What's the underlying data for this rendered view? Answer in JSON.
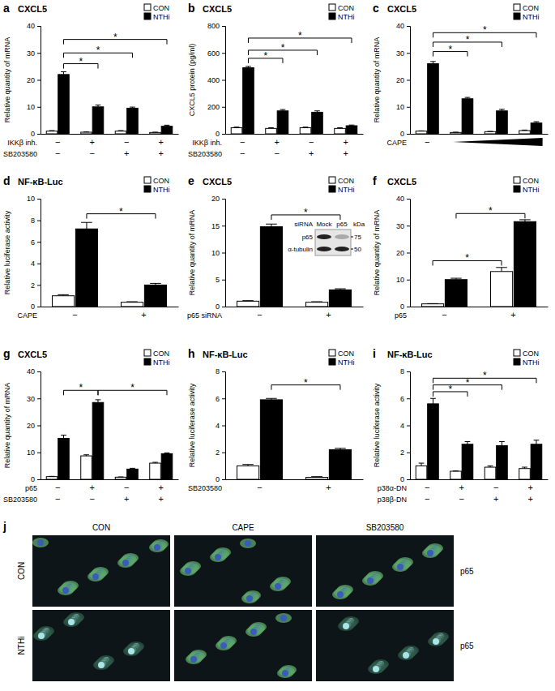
{
  "chart_data": [
    {
      "panel": "a",
      "type": "bar",
      "title": "CXCL5",
      "y_label": "Relative quantity of mRNA",
      "categories": [
        null,
        null,
        null,
        null
      ],
      "series": [
        {
          "name": "CON",
          "color": "#ffffff",
          "values": [
            1.0,
            0.6,
            1.0,
            0.5
          ],
          "errors": [
            0.2,
            0.1,
            0.2,
            0.1
          ]
        },
        {
          "name": "NTHi",
          "color": "#000000",
          "values": [
            22,
            10,
            9.5,
            2.8
          ],
          "errors": [
            1.0,
            0.7,
            0.4,
            0.4
          ]
        }
      ],
      "ylim": [
        0,
        40
      ],
      "yticks": [
        0,
        10,
        20,
        30,
        40
      ],
      "legend": "top-right",
      "rows": [
        {
          "label": "IKKβ inh.",
          "values": [
            "−",
            "+",
            "−",
            "+"
          ]
        },
        {
          "label": "SB203580",
          "values": [
            "−",
            "−",
            "+",
            "+"
          ]
        }
      ],
      "brackets": [
        {
          "from": [
            0,
            1
          ],
          "to": [
            1,
            1
          ],
          "y": 26,
          "label": "*"
        },
        {
          "from": [
            0,
            1
          ],
          "to": [
            2,
            1
          ],
          "y": 30,
          "label": "*"
        },
        {
          "from": [
            0,
            1
          ],
          "to": [
            3,
            1
          ],
          "y": 35,
          "label": "*"
        }
      ]
    },
    {
      "panel": "b",
      "type": "bar",
      "title": "CXCL5",
      "y_label": "CXCL5 protein (pg/ml)",
      "categories": [
        null,
        null,
        null,
        null
      ],
      "series": [
        {
          "name": "CON",
          "color": "#ffffff",
          "values": [
            45,
            40,
            45,
            40
          ],
          "errors": [
            5,
            5,
            5,
            5
          ]
        },
        {
          "name": "NTHi",
          "color": "#000000",
          "values": [
            490,
            170,
            160,
            60
          ],
          "errors": [
            10,
            10,
            10,
            5
          ]
        }
      ],
      "ylim": [
        0,
        800
      ],
      "yticks": [
        0,
        200,
        400,
        600,
        800
      ],
      "legend": "top-right",
      "rows": [
        {
          "label": "IKKβ inh.",
          "values": [
            "−",
            "+",
            "−",
            "+"
          ]
        },
        {
          "label": "SB203580",
          "values": [
            "−",
            "−",
            "+",
            "+"
          ]
        }
      ],
      "brackets": [
        {
          "from": [
            0,
            1
          ],
          "to": [
            1,
            1
          ],
          "y": 560,
          "label": "*"
        },
        {
          "from": [
            0,
            1
          ],
          "to": [
            2,
            1
          ],
          "y": 620,
          "label": "*"
        },
        {
          "from": [
            0,
            1
          ],
          "to": [
            3,
            1
          ],
          "y": 710,
          "label": "*"
        }
      ]
    },
    {
      "panel": "c",
      "type": "bar",
      "title": "CXCL5",
      "y_label": "Relative quantity of mRNA",
      "categories": [
        null,
        null,
        null,
        null
      ],
      "series": [
        {
          "name": "CON",
          "color": "#ffffff",
          "values": [
            1.0,
            0.5,
            0.8,
            1.2
          ],
          "errors": [
            0.1,
            0.1,
            0.1,
            0.2
          ]
        },
        {
          "name": "NTHi",
          "color": "#000000",
          "values": [
            26,
            13,
            8.5,
            4
          ],
          "errors": [
            0.8,
            0.5,
            0.6,
            0.5
          ]
        }
      ],
      "ylim": [
        0,
        40
      ],
      "yticks": [
        0,
        10,
        20,
        30,
        40
      ],
      "legend": "top-right",
      "rows": [
        {
          "label": "CAPE",
          "values": [
            "−",
            null,
            null,
            null
          ],
          "ramp": true
        }
      ],
      "brackets": [
        {
          "from": [
            0,
            1
          ],
          "to": [
            1,
            1
          ],
          "y": 30.5,
          "label": "*"
        },
        {
          "from": [
            0,
            1
          ],
          "to": [
            2,
            1
          ],
          "y": 34,
          "label": "*"
        },
        {
          "from": [
            0,
            1
          ],
          "to": [
            3,
            1
          ],
          "y": 37.5,
          "label": "*"
        }
      ]
    },
    {
      "panel": "d",
      "type": "bar",
      "title": "NF-κB-Luc",
      "y_label": "Relative luciferase activity",
      "categories": [
        null,
        null
      ],
      "series": [
        {
          "name": "CON",
          "color": "#ffffff",
          "values": [
            1.0,
            0.4
          ],
          "errors": [
            0.1,
            0.05
          ]
        },
        {
          "name": "NTHi",
          "color": "#000000",
          "values": [
            7.2,
            2.0
          ],
          "errors": [
            0.6,
            0.15
          ]
        }
      ],
      "ylim": [
        0,
        10
      ],
      "yticks": [
        0,
        2,
        4,
        6,
        8,
        10
      ],
      "legend": "top-right",
      "rows": [
        {
          "label": "CAPE",
          "values": [
            "−",
            "+"
          ]
        }
      ],
      "brackets": [
        {
          "from": [
            0,
            1
          ],
          "to": [
            1,
            1
          ],
          "y": 8.6,
          "label": "*"
        }
      ]
    },
    {
      "panel": "e",
      "type": "bar",
      "title": "CXCL5",
      "y_label": "Relative quantity of mRNA",
      "categories": [
        null,
        null
      ],
      "series": [
        {
          "name": "CON",
          "color": "#ffffff",
          "values": [
            1.0,
            0.8
          ],
          "errors": [
            0.1,
            0.1
          ]
        },
        {
          "name": "NTHi",
          "color": "#000000",
          "values": [
            14.8,
            3.1
          ],
          "errors": [
            0.5,
            0.2
          ]
        }
      ],
      "ylim": [
        0,
        20
      ],
      "yticks": [
        0,
        5,
        10,
        15,
        20
      ],
      "legend": "top-right",
      "rows": [
        {
          "label": "p65 siRNA",
          "values": [
            "−",
            "+"
          ]
        }
      ],
      "brackets": [
        {
          "from": [
            0,
            1
          ],
          "to": [
            1,
            1
          ],
          "y": 17,
          "label": "*"
        }
      ],
      "inset": {
        "title": "siRNA",
        "lanes": [
          "Mock",
          "p65"
        ],
        "bands": [
          "p65",
          "α-tubulin"
        ],
        "unit": "kDa",
        "markers": [
          75,
          50
        ]
      }
    },
    {
      "panel": "f",
      "type": "bar",
      "title": "CXCL5",
      "y_label": "Relative quantity of mRNA",
      "categories": [
        null,
        null
      ],
      "series": [
        {
          "name": "CON",
          "color": "#ffffff",
          "values": [
            1.0,
            13
          ],
          "errors": [
            0.1,
            1.5
          ]
        },
        {
          "name": "NTHi",
          "color": "#000000",
          "values": [
            10,
            31.5
          ],
          "errors": [
            0.5,
            0.7
          ]
        }
      ],
      "ylim": [
        0,
        40
      ],
      "yticks": [
        0,
        10,
        20,
        30,
        40
      ],
      "legend": "top-right",
      "rows": [
        {
          "label": "p65",
          "values": [
            "−",
            "+"
          ]
        }
      ],
      "brackets": [
        {
          "from": [
            0,
            0
          ],
          "to": [
            1,
            0
          ],
          "y": 17,
          "label": "*"
        },
        {
          "from": [
            0,
            1
          ],
          "to": [
            1,
            1
          ],
          "y": 34.5,
          "label": "*"
        }
      ]
    },
    {
      "panel": "g",
      "type": "bar",
      "title": "CXCL5",
      "y_label": "Relative quantity of mRNA",
      "categories": [
        null,
        null,
        null,
        null
      ],
      "series": [
        {
          "name": "CON",
          "color": "#ffffff",
          "values": [
            1.0,
            8.7,
            0.8,
            6
          ],
          "errors": [
            0.1,
            0.4,
            0.1,
            0.3
          ]
        },
        {
          "name": "NTHi",
          "color": "#000000",
          "values": [
            15.2,
            28.5,
            3.8,
            9.5
          ],
          "errors": [
            1.2,
            1.0,
            0.3,
            0.3
          ]
        }
      ],
      "ylim": [
        0,
        40
      ],
      "yticks": [
        0,
        10,
        20,
        30,
        40
      ],
      "legend": "top-right",
      "rows": [
        {
          "label": "p65",
          "values": [
            "−",
            "+",
            "−",
            "+"
          ]
        },
        {
          "label": "SB203580",
          "values": [
            "−",
            "−",
            "+",
            "+"
          ]
        }
      ],
      "brackets": [
        {
          "from": [
            0,
            1
          ],
          "to": [
            1,
            1
          ],
          "y": 33,
          "label": "*"
        },
        {
          "from": [
            1,
            1
          ],
          "to": [
            3,
            1
          ],
          "y": 33,
          "label": "*"
        }
      ]
    },
    {
      "panel": "h",
      "type": "bar",
      "title": "NF-κB-Luc",
      "y_label": "Relative luciferase activity",
      "categories": [
        null,
        null
      ],
      "series": [
        {
          "name": "CON",
          "color": "#ffffff",
          "values": [
            1.0,
            0.15
          ],
          "errors": [
            0.1,
            0.05
          ]
        },
        {
          "name": "NTHi",
          "color": "#000000",
          "values": [
            5.9,
            2.2
          ],
          "errors": [
            0.1,
            0.1
          ]
        }
      ],
      "ylim": [
        0,
        8
      ],
      "yticks": [
        0,
        2,
        4,
        6,
        8
      ],
      "legend": "top-right",
      "rows": [
        {
          "label": "SB203580",
          "values": [
            "−",
            "+"
          ]
        }
      ],
      "brackets": [
        {
          "from": [
            0,
            1
          ],
          "to": [
            1,
            1
          ],
          "y": 7,
          "label": "*"
        }
      ]
    },
    {
      "panel": "i",
      "type": "bar",
      "title": "NF-κB-Luc",
      "y_label": "Relative luciferase activity",
      "categories": [
        null,
        null,
        null,
        null
      ],
      "series": [
        {
          "name": "CON",
          "color": "#ffffff",
          "values": [
            1.0,
            0.6,
            0.9,
            0.8
          ],
          "errors": [
            0.2,
            0.02,
            0.1,
            0.1
          ]
        },
        {
          "name": "NTHi",
          "color": "#000000",
          "values": [
            5.6,
            2.6,
            2.5,
            2.6
          ],
          "errors": [
            0.4,
            0.2,
            0.3,
            0.3
          ]
        }
      ],
      "ylim": [
        0,
        8
      ],
      "yticks": [
        0,
        2,
        4,
        6,
        8
      ],
      "legend": "top-right",
      "rows": [
        {
          "label": "p38α-DN",
          "values": [
            "−",
            "+",
            "−",
            "+"
          ]
        },
        {
          "label": "p38β-DN",
          "values": [
            "−",
            "−",
            "+",
            "+"
          ]
        }
      ],
      "brackets": [
        {
          "from": [
            0,
            1
          ],
          "to": [
            1,
            1
          ],
          "y": 6.5,
          "label": "*"
        },
        {
          "from": [
            0,
            1
          ],
          "to": [
            2,
            1
          ],
          "y": 7.0,
          "label": "*"
        },
        {
          "from": [
            0,
            1
          ],
          "to": [
            3,
            1
          ],
          "y": 7.5,
          "label": "*"
        }
      ]
    }
  ],
  "panel_j": {
    "panel": "j",
    "columns": [
      "CON",
      "CAPE",
      "SB203580"
    ],
    "rows": [
      "CON",
      "NTHi"
    ],
    "stain": [
      "p65",
      "p65"
    ]
  }
}
